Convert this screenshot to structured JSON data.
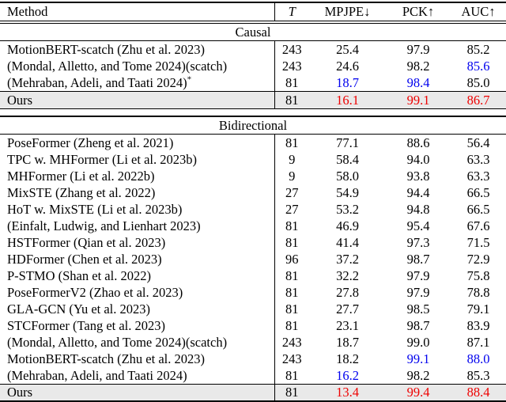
{
  "colors": {
    "best": "#ee0000",
    "second_best": "#0000ee",
    "row_highlight": "#e9e9e9",
    "text": "#000000"
  },
  "table": {
    "columns": [
      {
        "key": "method",
        "label": "Method"
      },
      {
        "key": "t",
        "label": "T"
      },
      {
        "key": "mpjpe",
        "label": "MPJPE↓"
      },
      {
        "key": "pck",
        "label": "PCK↑"
      },
      {
        "key": "auc",
        "label": "AUC↑"
      }
    ],
    "sections": [
      {
        "label": "Causal",
        "rows": [
          {
            "method": "MotionBERT-scatch (Zhu et al. 2023)",
            "sup": "",
            "values": [
              "243",
              "25.4",
              "97.9",
              "85.2"
            ],
            "value_colors": [
              null,
              null,
              null,
              null
            ],
            "ours": false
          },
          {
            "method": "(Mondal, Alletto, and Tome 2024)(scatch)",
            "sup": "",
            "values": [
              "243",
              "24.6",
              "98.2",
              "85.6"
            ],
            "value_colors": [
              null,
              null,
              null,
              "second_best"
            ],
            "ours": false
          },
          {
            "method": "(Mehraban, Adeli, and Taati 2024)",
            "sup": "*",
            "values": [
              "81",
              "18.7",
              "98.4",
              "85.0"
            ],
            "value_colors": [
              null,
              "second_best",
              "second_best",
              null
            ],
            "ours": false
          },
          {
            "method": "Ours",
            "sup": "",
            "values": [
              "81",
              "16.1",
              "99.1",
              "86.7"
            ],
            "value_colors": [
              null,
              "best",
              "best",
              "best"
            ],
            "ours": true
          }
        ]
      },
      {
        "label": "Bidirectional",
        "rows": [
          {
            "method": "PoseFormer (Zheng et al. 2021)",
            "sup": "",
            "values": [
              "81",
              "77.1",
              "88.6",
              "56.4"
            ],
            "value_colors": [
              null,
              null,
              null,
              null
            ],
            "ours": false
          },
          {
            "method": "TPC w. MHFormer (Li et al. 2023b)",
            "sup": "",
            "values": [
              "9",
              "58.4",
              "94.0",
              "63.3"
            ],
            "value_colors": [
              null,
              null,
              null,
              null
            ],
            "ours": false
          },
          {
            "method": "MHFormer (Li et al. 2022b)",
            "sup": "",
            "values": [
              "9",
              "58.0",
              "93.8",
              "63.3"
            ],
            "value_colors": [
              null,
              null,
              null,
              null
            ],
            "ours": false
          },
          {
            "method": "MixSTE (Zhang et al. 2022)",
            "sup": "",
            "values": [
              "27",
              "54.9",
              "94.4",
              "66.5"
            ],
            "value_colors": [
              null,
              null,
              null,
              null
            ],
            "ours": false
          },
          {
            "method": "HoT w. MixSTE (Li et al. 2023b)",
            "sup": "",
            "values": [
              "27",
              "53.2",
              "94.8",
              "66.5"
            ],
            "value_colors": [
              null,
              null,
              null,
              null
            ],
            "ours": false
          },
          {
            "method": "(Einfalt, Ludwig, and Lienhart 2023)",
            "sup": "",
            "values": [
              "81",
              "46.9",
              "95.4",
              "67.6"
            ],
            "value_colors": [
              null,
              null,
              null,
              null
            ],
            "ours": false
          },
          {
            "method": "HSTFormer (Qian et al. 2023)",
            "sup": "",
            "values": [
              "81",
              "41.4",
              "97.3",
              "71.5"
            ],
            "value_colors": [
              null,
              null,
              null,
              null
            ],
            "ours": false
          },
          {
            "method": "HDFormer (Chen et al. 2023)",
            "sup": "",
            "values": [
              "96",
              "37.2",
              "98.7",
              "72.9"
            ],
            "value_colors": [
              null,
              null,
              null,
              null
            ],
            "ours": false
          },
          {
            "method": "P-STMO (Shan et al. 2022)",
            "sup": "",
            "values": [
              "81",
              "32.2",
              "97.9",
              "75.8"
            ],
            "value_colors": [
              null,
              null,
              null,
              null
            ],
            "ours": false
          },
          {
            "method": "PoseFormerV2 (Zhao et al. 2023)",
            "sup": "",
            "values": [
              "81",
              "27.8",
              "97.9",
              "78.8"
            ],
            "value_colors": [
              null,
              null,
              null,
              null
            ],
            "ours": false
          },
          {
            "method": "GLA-GCN (Yu et al. 2023)",
            "sup": "",
            "values": [
              "81",
              "27.7",
              "98.5",
              "79.1"
            ],
            "value_colors": [
              null,
              null,
              null,
              null
            ],
            "ours": false
          },
          {
            "method": "STCFormer (Tang et al. 2023)",
            "sup": "",
            "values": [
              "81",
              "23.1",
              "98.7",
              "83.9"
            ],
            "value_colors": [
              null,
              null,
              null,
              null
            ],
            "ours": false
          },
          {
            "method": "(Mondal, Alletto, and Tome 2024)(scatch)",
            "sup": "",
            "values": [
              "243",
              "18.7",
              "99.0",
              "87.1"
            ],
            "value_colors": [
              null,
              null,
              null,
              null
            ],
            "ours": false
          },
          {
            "method": "MotionBERT-scatch (Zhu et al. 2023)",
            "sup": "",
            "values": [
              "243",
              "18.2",
              "99.1",
              "88.0"
            ],
            "value_colors": [
              null,
              null,
              "second_best",
              "second_best"
            ],
            "ours": false
          },
          {
            "method": "(Mehraban, Adeli, and Taati 2024)",
            "sup": "",
            "values": [
              "81",
              "16.2",
              "98.2",
              "85.3"
            ],
            "value_colors": [
              null,
              "second_best",
              null,
              null
            ],
            "ours": false
          },
          {
            "method": "Ours",
            "sup": "",
            "values": [
              "81",
              "13.4",
              "99.4",
              "88.4"
            ],
            "value_colors": [
              null,
              "best",
              "best",
              "best"
            ],
            "ours": true
          }
        ]
      }
    ]
  }
}
